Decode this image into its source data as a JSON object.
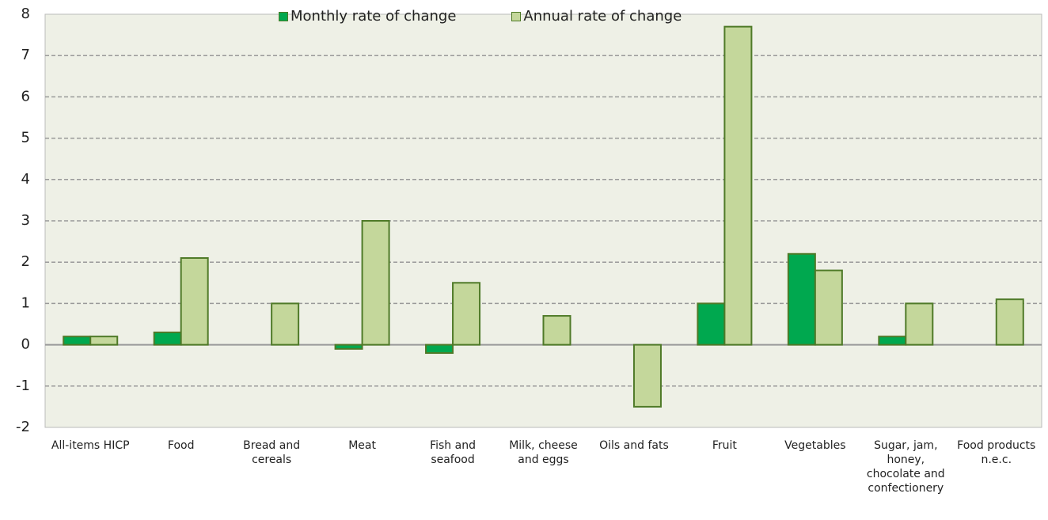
{
  "chart_data": {
    "type": "bar",
    "categories": [
      "All-items HICP",
      "Food",
      "Bread and cereals",
      "Meat",
      "Fish and seafood",
      "Milk, cheese and eggs",
      "Oils and fats",
      "Fruit",
      "Vegetables",
      "Sugar, jam, honey, chocolate and confectionery",
      "Food products n.e.c."
    ],
    "series": [
      {
        "name": "Monthly rate of change",
        "color": "#00a84f",
        "values": [
          0.2,
          0.3,
          0,
          -0.1,
          -0.2,
          0,
          0,
          1.0,
          2.2,
          0.2,
          0
        ]
      },
      {
        "name": "Annual rate of change",
        "color": "#c4d79b",
        "values": [
          0.2,
          2.1,
          1.0,
          3.0,
          1.5,
          0.7,
          -1.5,
          7.7,
          1.8,
          1.0,
          1.1
        ]
      }
    ],
    "ylim": [
      -2,
      8
    ],
    "yticks": [
      -2,
      -1,
      0,
      1,
      2,
      3,
      4,
      5,
      6,
      7,
      8
    ],
    "grid": true,
    "legend": "top"
  }
}
